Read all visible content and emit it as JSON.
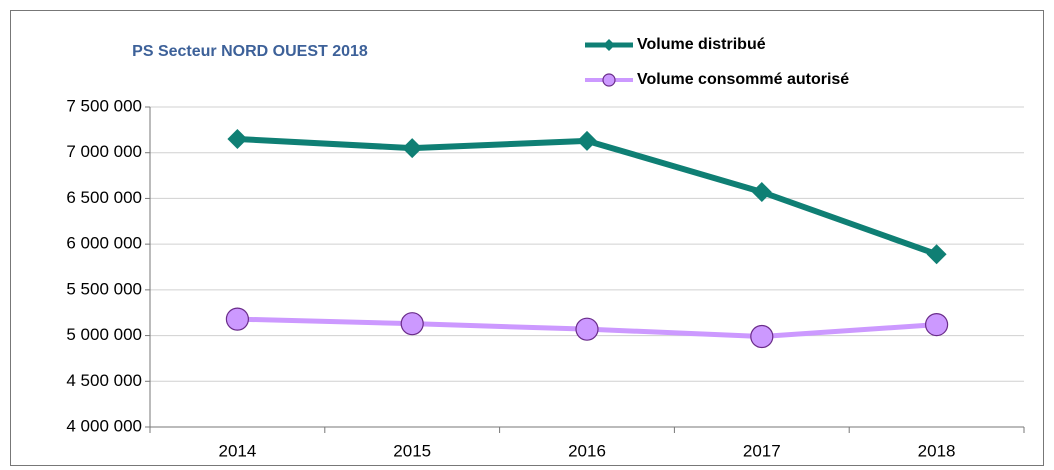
{
  "chart_data": {
    "type": "line",
    "title": "PS Secteur NORD OUEST 2018",
    "categories": [
      "2014",
      "2015",
      "2016",
      "2017",
      "2018"
    ],
    "series": [
      {
        "name": "Volume distribué",
        "color": "#0f7f74",
        "marker": "diamond",
        "values": [
          7150000,
          7050000,
          7130000,
          6570000,
          5890000
        ]
      },
      {
        "name": "Volume consommé autorisé",
        "color": "#cc99ff",
        "marker": "circle",
        "values": [
          5180000,
          5130000,
          5070000,
          4990000,
          5120000
        ]
      }
    ],
    "ylim": [
      4000000,
      7500000
    ],
    "yticks": [
      {
        "value": 4000000,
        "label": "4 000 000"
      },
      {
        "value": 4500000,
        "label": "4 500 000"
      },
      {
        "value": 5000000,
        "label": "5 000 000"
      },
      {
        "value": 5500000,
        "label": "5 500 000"
      },
      {
        "value": 6000000,
        "label": "6 000 000"
      },
      {
        "value": 6500000,
        "label": "6 500 000"
      },
      {
        "value": 7000000,
        "label": "7 000 000"
      },
      {
        "value": 7500000,
        "label": "7 500 000"
      }
    ],
    "grid": true,
    "legend": "top-right"
  }
}
